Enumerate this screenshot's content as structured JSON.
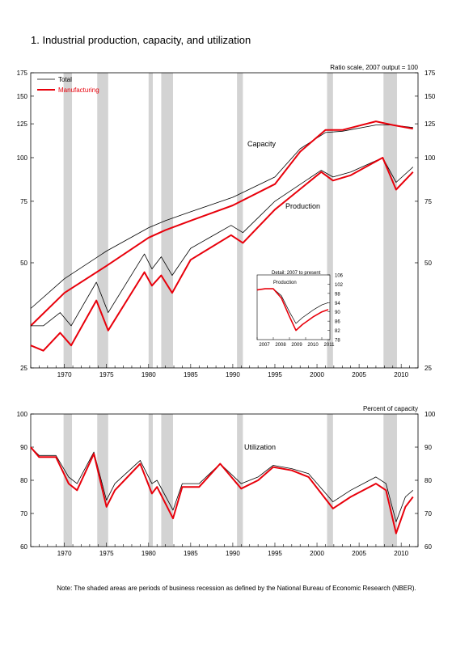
{
  "title": "1.  Industrial production, capacity, and utilization",
  "note": "Note: The shaded areas are periods of business recession as defined by the National Bureau of Economic Research (NBER).",
  "colors": {
    "total": "#000000",
    "manufacturing": "#e8000b",
    "recession": "#d3d3d3"
  },
  "chart_data": [
    {
      "type": "line",
      "panel": "top",
      "scale_note": "Ratio scale, 2007 output = 100",
      "y_scale": "log",
      "ylim": [
        25,
        175
      ],
      "yticks": [
        25,
        50,
        75,
        100,
        125,
        150,
        175
      ],
      "xlim": [
        1966,
        2012
      ],
      "xticks": [
        1970,
        1975,
        1980,
        1985,
        1990,
        1995,
        2000,
        2005,
        2010
      ],
      "legend": [
        "Total",
        "Manufacturing"
      ],
      "legend_position": "top-left",
      "annotations": [
        "Capacity",
        "Production"
      ],
      "recessions": [
        [
          1969.9,
          1970.9
        ],
        [
          1973.9,
          1975.2
        ],
        [
          1980.0,
          1980.5
        ],
        [
          1981.5,
          1982.9
        ],
        [
          1990.5,
          1991.2
        ],
        [
          2001.2,
          2001.9
        ],
        [
          2007.9,
          2009.5
        ]
      ],
      "series": [
        {
          "name": "Total",
          "group": "Capacity",
          "x": [
            1966,
            1970,
            1975,
            1980,
            1982,
            1985,
            1990,
            1995,
            1998,
            2001,
            2003,
            2007,
            2009,
            2011.4
          ],
          "y": [
            37,
            45,
            54,
            63,
            66,
            70,
            77,
            88,
            106,
            118,
            119,
            124,
            124,
            122
          ]
        },
        {
          "name": "Manufacturing",
          "group": "Capacity",
          "x": [
            1966,
            1970,
            1975,
            1980,
            1982,
            1985,
            1990,
            1995,
            1998,
            2001,
            2003,
            2007,
            2009,
            2011.4
          ],
          "y": [
            33,
            41,
            49,
            59,
            62,
            66,
            73,
            84,
            104,
            120,
            120,
            127,
            124,
            121
          ]
        },
        {
          "name": "Total",
          "group": "Production",
          "x": [
            1966,
            1967.5,
            1969.5,
            1970.8,
            1973.8,
            1975.2,
            1979.5,
            1980.4,
            1981.5,
            1982.8,
            1985,
            1989.8,
            1991.2,
            1995,
            2000.5,
            2001.9,
            2004,
            2007.8,
            2009.4,
            2011.4
          ],
          "y": [
            33,
            33,
            36,
            33,
            44,
            36,
            53,
            48,
            52,
            46,
            55,
            64,
            61,
            75,
            92,
            88,
            91,
            100,
            85,
            94
          ]
        },
        {
          "name": "Manufacturing",
          "group": "Production",
          "x": [
            1966,
            1967.5,
            1969.5,
            1970.8,
            1973.8,
            1975.2,
            1979.5,
            1980.4,
            1981.5,
            1982.8,
            1985,
            1989.8,
            1991.2,
            1995,
            2000.5,
            2001.9,
            2004,
            2007.8,
            2009.4,
            2011.4
          ],
          "y": [
            29,
            28,
            31.5,
            29,
            39,
            32,
            47,
            43,
            46,
            41,
            51,
            60,
            57,
            71,
            91,
            86,
            89,
            100,
            81,
            91
          ]
        }
      ]
    },
    {
      "type": "line",
      "panel": "inset",
      "title": "Detail: 2007 to present",
      "subtitle": "Production",
      "ylim": [
        78,
        106
      ],
      "yticks": [
        78,
        82,
        86,
        90,
        94,
        98,
        102,
        106
      ],
      "xlim": [
        2007,
        2011.5
      ],
      "xticks": [
        2007,
        2008,
        2009,
        2010,
        2011
      ],
      "series": [
        {
          "name": "Total",
          "x": [
            2007,
            2007.5,
            2008,
            2008.5,
            2009.0,
            2009.4,
            2009.8,
            2010.5,
            2011,
            2011.4
          ],
          "y": [
            99.5,
            100,
            100,
            97,
            90,
            85,
            87.5,
            91,
            93,
            94
          ]
        },
        {
          "name": "Manufacturing",
          "x": [
            2007,
            2007.5,
            2008,
            2008.5,
            2009.0,
            2009.4,
            2009.8,
            2010.5,
            2011,
            2011.4
          ],
          "y": [
            99.5,
            100,
            100,
            96,
            88,
            82,
            84.5,
            88,
            90,
            91
          ]
        }
      ]
    },
    {
      "type": "line",
      "panel": "bottom",
      "title": "Utilization",
      "scale_note": "Percent of capacity",
      "ylim": [
        60,
        100
      ],
      "yticks": [
        60,
        70,
        80,
        90,
        100
      ],
      "xlim": [
        1966,
        2012
      ],
      "xticks": [
        1970,
        1975,
        1980,
        1985,
        1990,
        1995,
        2000,
        2005,
        2010
      ],
      "recessions": [
        [
          1969.9,
          1970.9
        ],
        [
          1973.9,
          1975.2
        ],
        [
          1980.0,
          1980.5
        ],
        [
          1981.5,
          1982.9
        ],
        [
          1990.5,
          1991.2
        ],
        [
          2001.2,
          2001.9
        ],
        [
          2007.9,
          2009.5
        ]
      ],
      "series": [
        {
          "name": "Total",
          "x": [
            1966,
            1967,
            1968,
            1969,
            1970.5,
            1971.5,
            1973.5,
            1975.0,
            1976,
            1979,
            1980.4,
            1981,
            1982.9,
            1984,
            1986,
            1988.5,
            1991.0,
            1993,
            1994.8,
            1997,
            1999,
            2001.9,
            2004,
            2007,
            2008.2,
            2009.4,
            2010.5,
            2011.4
          ],
          "y": [
            90,
            87.5,
            87.5,
            87.5,
            81,
            79,
            88.5,
            74,
            79,
            86,
            79,
            80,
            71,
            79,
            79,
            85,
            79,
            81,
            84.5,
            83.5,
            82,
            73.5,
            77,
            81,
            79,
            67.5,
            75,
            77
          ]
        },
        {
          "name": "Manufacturing",
          "x": [
            1966,
            1967,
            1968,
            1969,
            1970.5,
            1971.5,
            1973.5,
            1975.0,
            1976,
            1979,
            1980.4,
            1981,
            1982.9,
            1984,
            1986,
            1988.5,
            1991.0,
            1993,
            1994.8,
            1997,
            1999,
            2001.9,
            2004,
            2007,
            2008.2,
            2009.4,
            2010.5,
            2011.4
          ],
          "y": [
            90,
            87,
            87,
            87,
            79,
            77,
            88,
            72,
            77,
            85,
            76,
            78,
            68.5,
            78,
            78,
            85,
            77.5,
            80,
            84,
            83,
            81,
            71.5,
            75,
            79,
            77,
            64,
            72,
            75
          ]
        }
      ]
    }
  ]
}
